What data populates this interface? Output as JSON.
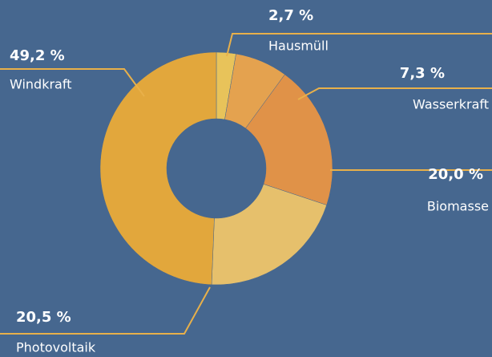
{
  "chart_data": {
    "type": "donut",
    "categories": [
      "Hausmüll",
      "Wasserkraft",
      "Biomasse",
      "Photovoltaik",
      "Windkraft"
    ],
    "values": [
      2.7,
      7.3,
      20.0,
      20.5,
      49.2
    ],
    "value_labels": [
      "2,7 %",
      "7,3 %",
      "20,0 %",
      "20,5 %",
      "49,2 %"
    ],
    "colors": [
      "#e8c35a",
      "#e4a24f",
      "#e09248",
      "#e6c06c",
      "#e2a73c"
    ]
  }
}
